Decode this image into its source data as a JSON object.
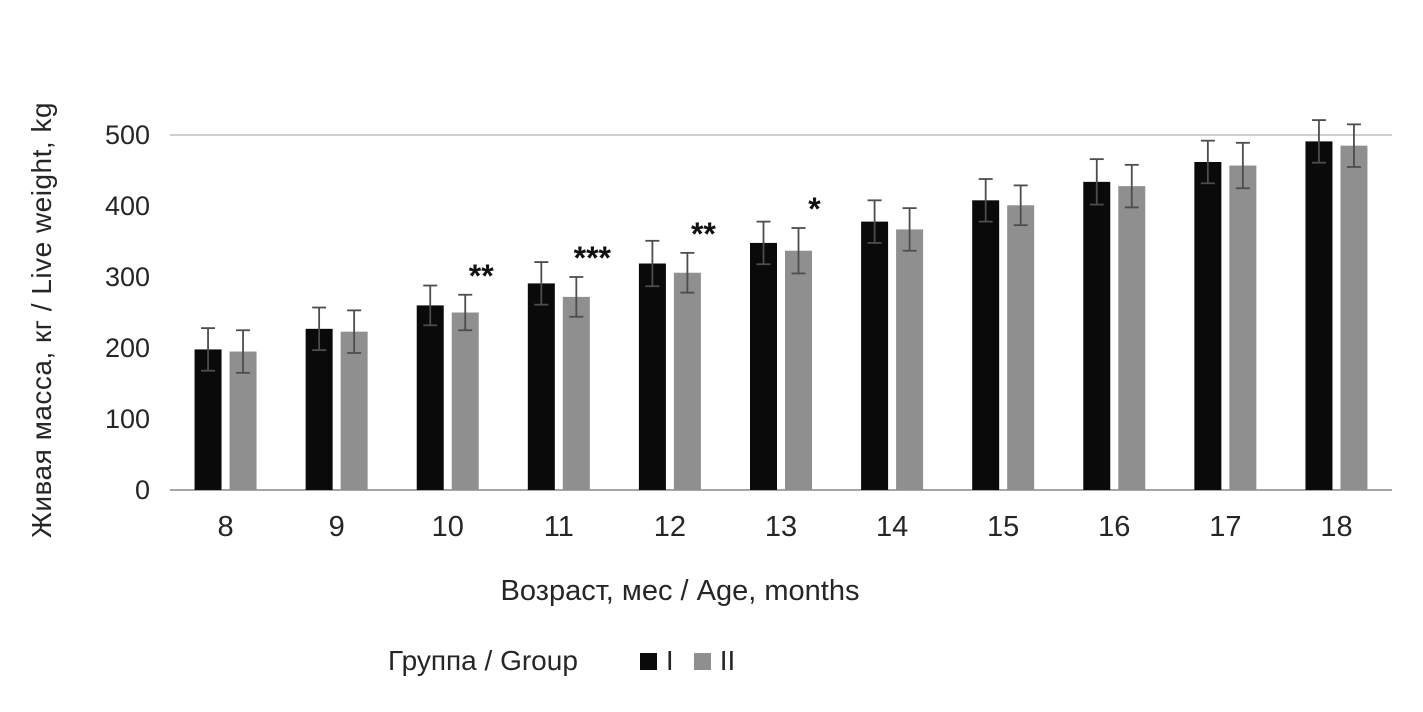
{
  "chart_data": {
    "type": "bar",
    "title": "",
    "xlabel": "Возраст, мес / Age, months",
    "ylabel": "Живая масса, кг / Live weight, kg",
    "legend_title": "Группа / Group",
    "legend_position": "bottom",
    "grid": "horizontal-line-at-max-only",
    "categories": [
      8,
      9,
      10,
      11,
      12,
      13,
      14,
      15,
      16,
      17,
      18
    ],
    "series": [
      {
        "name": "I",
        "color": "#0a0a0a",
        "values": [
          198,
          227,
          260,
          291,
          319,
          348,
          378,
          408,
          434,
          462,
          491
        ],
        "errors": [
          30,
          30,
          28,
          30,
          32,
          30,
          30,
          30,
          32,
          30,
          30
        ]
      },
      {
        "name": "II",
        "color": "#8f8f8f",
        "values": [
          195,
          223,
          250,
          272,
          306,
          337,
          367,
          401,
          428,
          457,
          485
        ],
        "errors": [
          30,
          30,
          25,
          28,
          28,
          32,
          30,
          28,
          30,
          32,
          30
        ]
      }
    ],
    "annotations": [
      {
        "category": 10,
        "series": "II",
        "text": "**"
      },
      {
        "category": 11,
        "series": "II",
        "text": "***"
      },
      {
        "category": 12,
        "series": "II",
        "text": "**"
      },
      {
        "category": 13,
        "series": "II",
        "text": "*"
      }
    ],
    "yticks": [
      0,
      100,
      200,
      300,
      400,
      500
    ],
    "ylim": [
      0,
      500
    ],
    "colors": {
      "axis_line": "#a6a6a6",
      "gridline": "#bfbfbf",
      "error_bar": "#4d4d4d",
      "tick_text": "#262626",
      "annotation_text": "#111111"
    }
  }
}
